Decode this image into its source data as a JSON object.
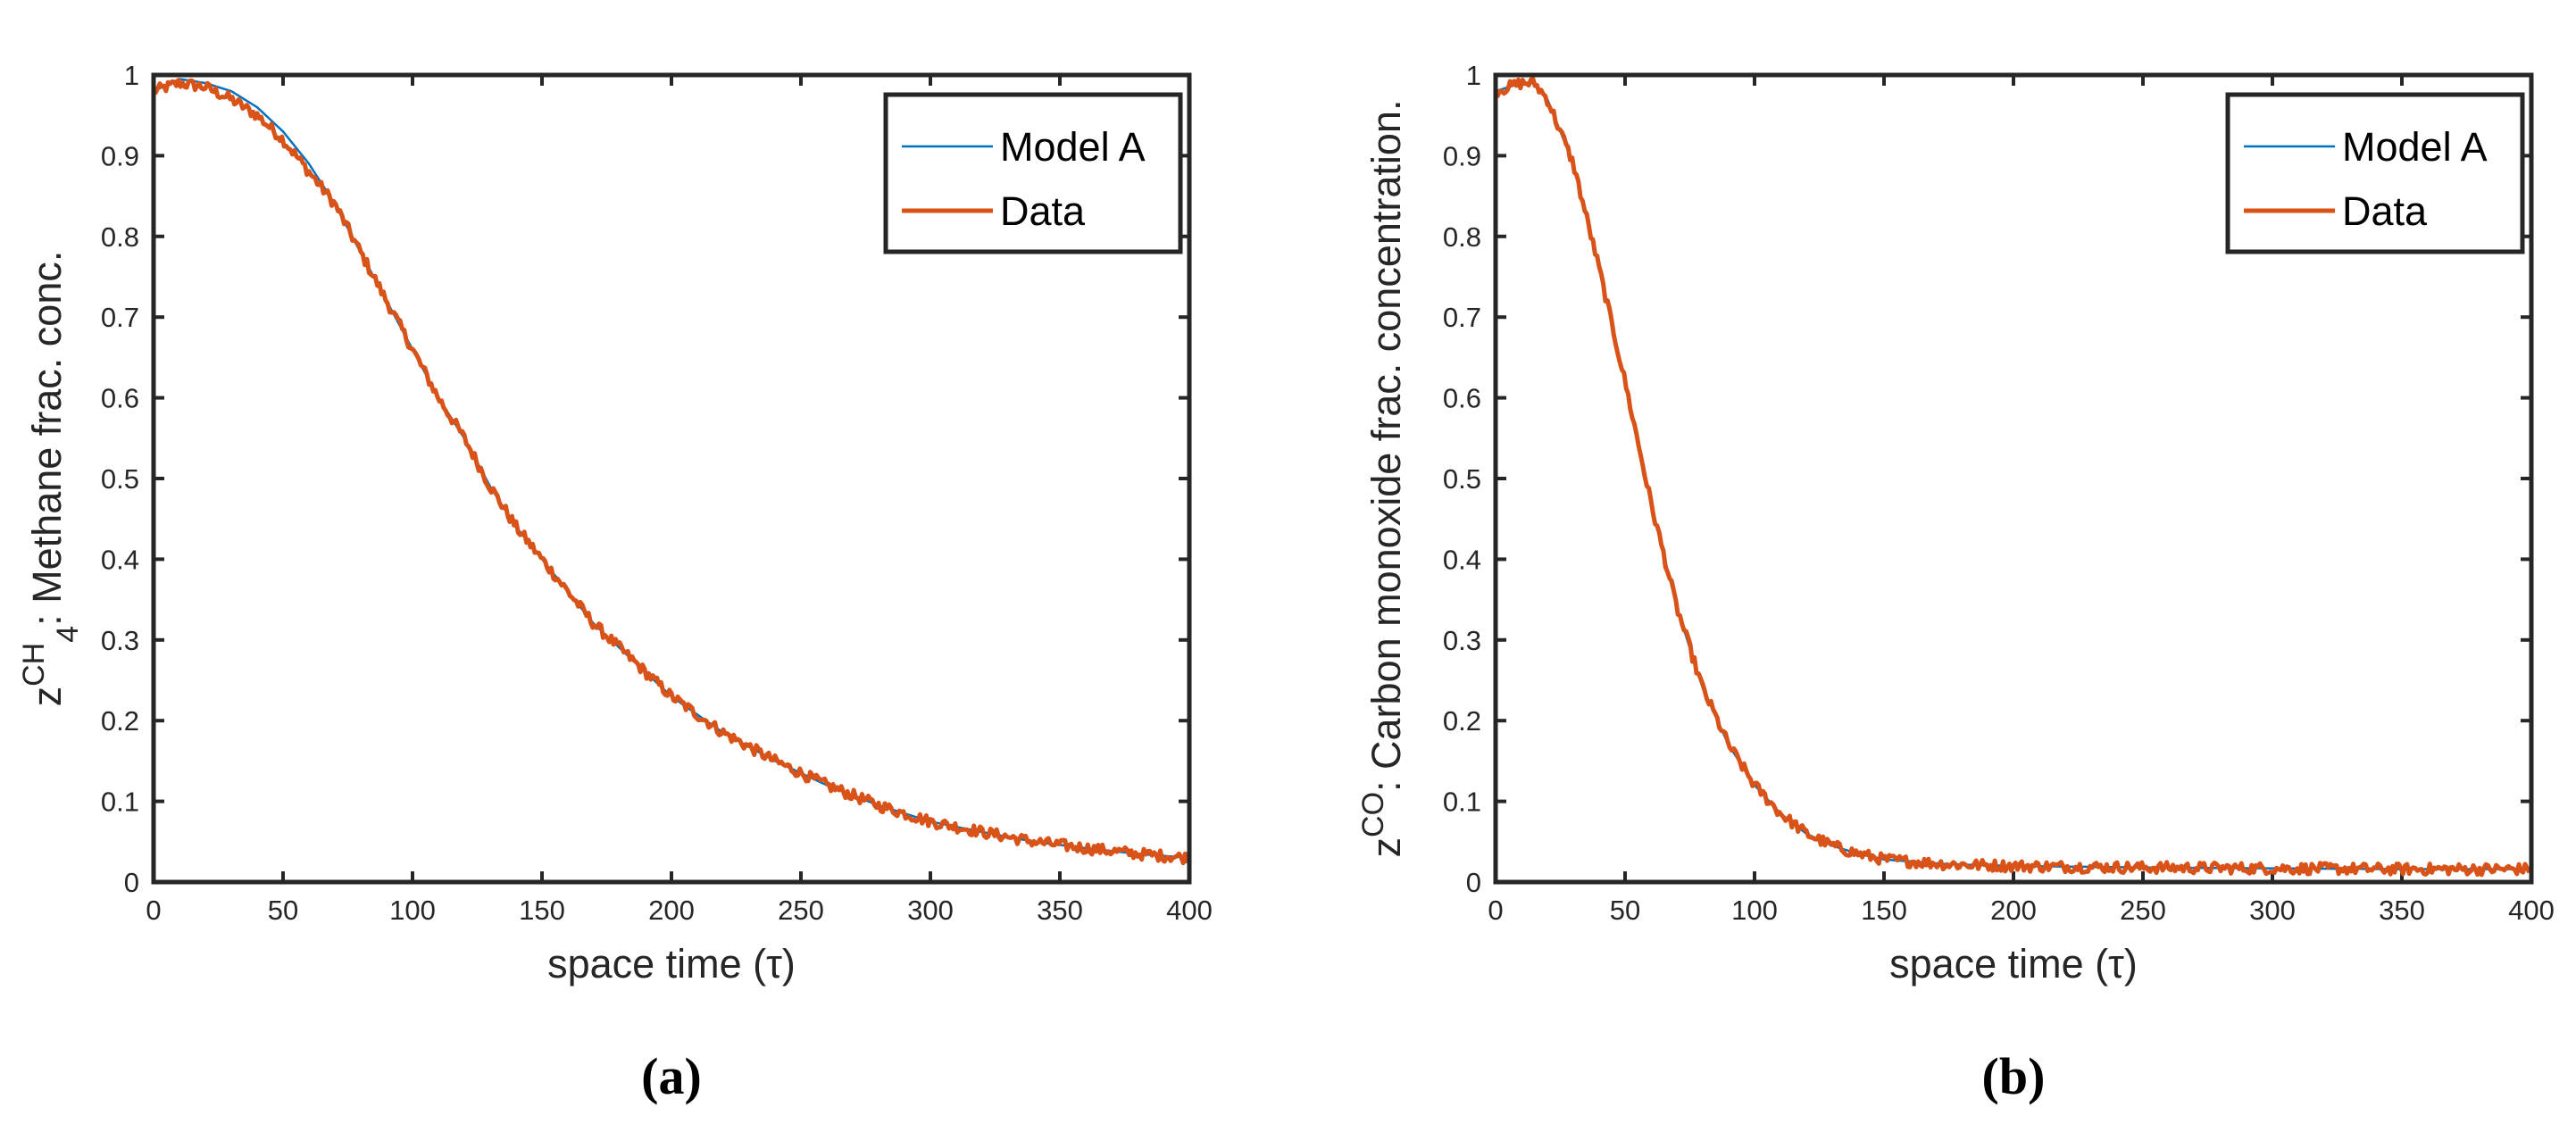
{
  "chart_data": [
    {
      "type": "line",
      "panel_label": "(a)",
      "xlabel": "space time (τ)",
      "ylabel_prefix": "z",
      "ylabel_superscript": "CH",
      "ylabel_subscript": "4",
      "ylabel_rest": ": Methane frac. conc.",
      "xlim": [
        0,
        400
      ],
      "ylim": [
        0,
        1
      ],
      "xticks": [
        "0",
        "50",
        "100",
        "150",
        "200",
        "250",
        "300",
        "350",
        "400"
      ],
      "yticks": [
        "0",
        "0.1",
        "0.2",
        "0.3",
        "0.4",
        "0.5",
        "0.6",
        "0.7",
        "0.8",
        "0.9",
        "1"
      ],
      "legend_position": "top-right",
      "series": [
        {
          "name": "Model A",
          "color": "#0072BD",
          "x": [
            0,
            10,
            20,
            30,
            40,
            50,
            60,
            70,
            80,
            90,
            100,
            110,
            120,
            130,
            140,
            150,
            160,
            170,
            180,
            190,
            200,
            220,
            240,
            260,
            280,
            300,
            320,
            340,
            360,
            380,
            400
          ],
          "y": [
            0.98,
            0.995,
            0.99,
            0.98,
            0.96,
            0.93,
            0.89,
            0.84,
            0.78,
            0.72,
            0.66,
            0.6,
            0.55,
            0.49,
            0.44,
            0.4,
            0.36,
            0.32,
            0.29,
            0.26,
            0.23,
            0.185,
            0.15,
            0.12,
            0.095,
            0.075,
            0.062,
            0.05,
            0.042,
            0.035,
            0.03
          ]
        },
        {
          "name": "Data",
          "color": "#D95319",
          "x": [
            0,
            10,
            20,
            30,
            40,
            50,
            60,
            70,
            80,
            90,
            100,
            110,
            120,
            130,
            140,
            150,
            160,
            170,
            180,
            190,
            200,
            220,
            240,
            260,
            280,
            300,
            320,
            340,
            360,
            380,
            400
          ],
          "y": [
            0.98,
            0.99,
            0.985,
            0.97,
            0.95,
            0.92,
            0.88,
            0.84,
            0.78,
            0.72,
            0.66,
            0.6,
            0.55,
            0.49,
            0.44,
            0.4,
            0.36,
            0.32,
            0.29,
            0.26,
            0.23,
            0.185,
            0.15,
            0.12,
            0.095,
            0.075,
            0.062,
            0.05,
            0.042,
            0.035,
            0.03
          ]
        }
      ]
    },
    {
      "type": "line",
      "panel_label": "(b)",
      "xlabel": "space time (τ)",
      "ylabel_prefix": "z",
      "ylabel_superscript": "CO",
      "ylabel_subscript": "",
      "ylabel_rest": ": Carbon monoxide frac. concentration.",
      "xlim": [
        0,
        400
      ],
      "ylim": [
        0,
        1
      ],
      "xticks": [
        "0",
        "50",
        "100",
        "150",
        "200",
        "250",
        "300",
        "350",
        "400"
      ],
      "yticks": [
        "0",
        "0.1",
        "0.2",
        "0.3",
        "0.4",
        "0.5",
        "0.6",
        "0.7",
        "0.8",
        "0.9",
        "1"
      ],
      "legend_position": "top-right",
      "series": [
        {
          "name": "Model A",
          "color": "#0072BD",
          "x": [
            0,
            10,
            15,
            20,
            30,
            40,
            50,
            60,
            70,
            80,
            90,
            100,
            110,
            120,
            130,
            140,
            150,
            175,
            200,
            250,
            300,
            350,
            400
          ],
          "y": [
            0.98,
            0.99,
            0.99,
            0.97,
            0.89,
            0.76,
            0.62,
            0.47,
            0.34,
            0.24,
            0.17,
            0.12,
            0.085,
            0.06,
            0.045,
            0.035,
            0.028,
            0.022,
            0.02,
            0.018,
            0.017,
            0.016,
            0.016
          ]
        },
        {
          "name": "Data",
          "color": "#D95319",
          "x": [
            0,
            10,
            15,
            20,
            30,
            40,
            50,
            60,
            70,
            80,
            90,
            100,
            110,
            120,
            130,
            140,
            150,
            175,
            200,
            250,
            300,
            350,
            400
          ],
          "y": [
            0.98,
            0.99,
            0.99,
            0.97,
            0.89,
            0.76,
            0.62,
            0.47,
            0.34,
            0.24,
            0.17,
            0.12,
            0.085,
            0.06,
            0.045,
            0.035,
            0.028,
            0.022,
            0.02,
            0.018,
            0.017,
            0.016,
            0.016
          ]
        }
      ]
    }
  ]
}
